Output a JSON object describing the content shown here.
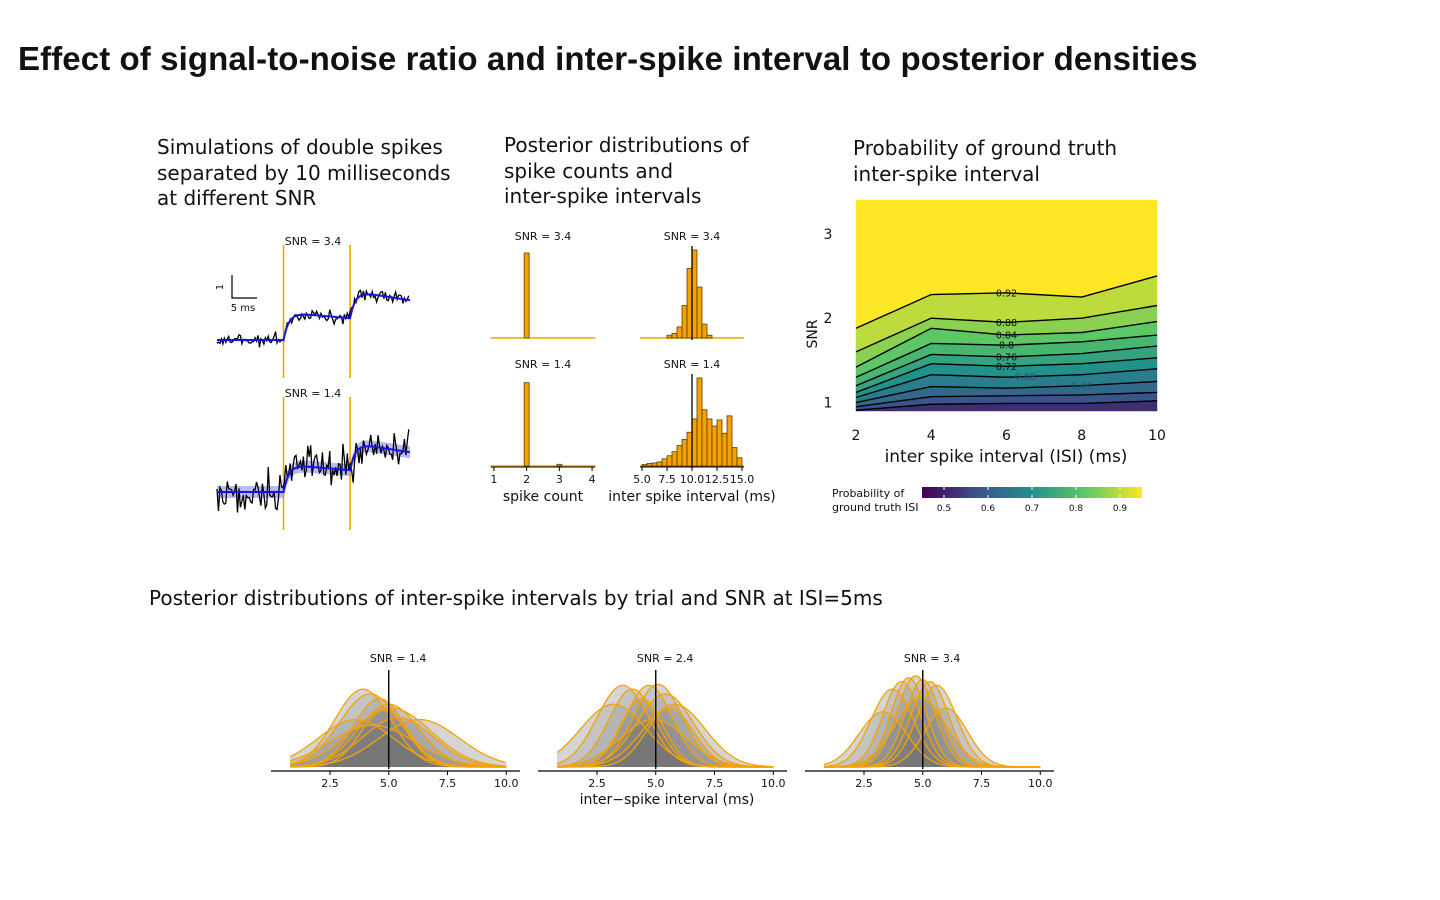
{
  "page": {
    "title": "Effect of signal-to-noise ratio and inter-spike interval to posterior densities"
  },
  "panels": {
    "traces": {
      "title": "Simulations of double spikes\nseparated by 10 milliseconds\nat different SNR"
    },
    "posteriors": {
      "title": "Posterior distributions of\nspike counts and\ninter-spike intervals"
    },
    "heatmap": {
      "title": "Probability of ground truth\ninter-spike interval"
    },
    "trials": {
      "title": "Posterior distributions of inter-spike intervals by trial and SNR at ISI=5ms"
    }
  },
  "chart_data": [
    {
      "id": "traces",
      "type": "line",
      "facets": [
        "SNR = 3.4",
        "SNR = 1.4"
      ],
      "scale_bar": {
        "y_label": "1",
        "x_label": "5 ms"
      },
      "spike_times_ms": [
        0,
        10
      ],
      "isi_ms": 10
    },
    {
      "id": "spike-count",
      "type": "bar",
      "xlabel": "spike count",
      "x_ticks": [
        "1",
        "2",
        "3",
        "4"
      ],
      "facets": [
        {
          "label": "SNR = 3.4",
          "categories": [
            1,
            2,
            3,
            4
          ],
          "values": [
            0,
            1.0,
            0,
            0
          ]
        },
        {
          "label": "SNR = 1.4",
          "categories": [
            1,
            2,
            3,
            4
          ],
          "values": [
            0,
            0.98,
            0.02,
            0
          ]
        }
      ]
    },
    {
      "id": "isi-histogram",
      "type": "bar",
      "xlabel": "inter spike interval (ms)",
      "x_ticks": [
        "5.0",
        "7.5",
        "10.0",
        "12.5",
        "15.0"
      ],
      "xlim": [
        5,
        15
      ],
      "ground_truth": 10,
      "facets": [
        {
          "label": "SNR = 3.4",
          "bin_centers": [
            7.75,
            8.25,
            8.75,
            9.25,
            9.75,
            10.25,
            10.75,
            11.25,
            11.75
          ],
          "values": [
            0.3,
            0.5,
            1.2,
            3.5,
            7.5,
            9.5,
            5.5,
            1.5,
            0.3
          ]
        },
        {
          "label": "SNR = 1.4",
          "bin_centers": [
            5.25,
            5.75,
            6.25,
            6.75,
            7.25,
            7.75,
            8.25,
            8.75,
            9.25,
            9.75,
            10.25,
            10.75,
            11.25,
            11.75,
            12.25,
            12.75,
            13.25,
            13.75,
            14.25,
            14.75
          ],
          "values": [
            0.15,
            0.25,
            0.3,
            0.4,
            0.7,
            1.0,
            1.4,
            2.0,
            2.6,
            3.3,
            4.6,
            8.6,
            5.5,
            4.6,
            3.9,
            4.5,
            3.2,
            4.9,
            1.8,
            0.8
          ]
        }
      ]
    },
    {
      "id": "heatmap",
      "type": "heatmap",
      "xlabel": "inter spike interval (ISI) (ms)",
      "ylabel": "SNR",
      "x_ticks": [
        "2",
        "4",
        "6",
        "8",
        "10"
      ],
      "y_ticks": [
        "1",
        "2",
        "3"
      ],
      "xlim": [
        2,
        10
      ],
      "ylim": [
        0.9,
        3.4
      ],
      "x": [
        2,
        4,
        6,
        8,
        10
      ],
      "contour_lines": [
        {
          "level": 0.92,
          "y": [
            1.88,
            2.28,
            2.3,
            2.25,
            2.5
          ]
        },
        {
          "level": 0.88,
          "y": [
            1.6,
            2.0,
            1.95,
            2.0,
            2.15
          ]
        },
        {
          "level": 0.84,
          "y": [
            1.42,
            1.88,
            1.8,
            1.83,
            1.96
          ]
        },
        {
          "level": 0.8,
          "y": [
            1.3,
            1.7,
            1.68,
            1.72,
            1.8
          ]
        },
        {
          "level": 0.76,
          "y": [
            1.2,
            1.57,
            1.54,
            1.58,
            1.67
          ]
        },
        {
          "level": 0.72,
          "y": [
            1.12,
            1.46,
            1.43,
            1.46,
            1.53
          ]
        },
        {
          "level": 0.68,
          "y": [
            1.06,
            1.33,
            1.3,
            1.33,
            1.4
          ]
        },
        {
          "level": 0.64,
          "y": [
            1.0,
            1.19,
            1.17,
            1.2,
            1.25
          ]
        },
        {
          "level": 0.6,
          "y": [
            0.95,
            1.07,
            1.08,
            1.09,
            1.12
          ]
        },
        {
          "level": 0.56,
          "y": [
            0.91,
            0.98,
            0.99,
            0.99,
            1.02
          ]
        }
      ],
      "contour_labels": [
        "0.92",
        "0.88",
        "0.84",
        "0.8",
        "0.76",
        "0.72",
        "0.68",
        "0.64"
      ],
      "colorbar": {
        "title": "Probability of\nground truth ISI",
        "ticks": [
          "0.5",
          "0.6",
          "0.7",
          "0.8",
          "0.9"
        ],
        "range": [
          0.45,
          0.95
        ],
        "colormap": [
          "#440154",
          "#3b528b",
          "#21918c",
          "#5ec962",
          "#fde725"
        ]
      }
    },
    {
      "id": "trial-densities",
      "type": "area",
      "xlabel": "inter−spike interval (ms)",
      "x_ticks": [
        "2.5",
        "5.0",
        "7.5",
        "10.0"
      ],
      "xlim": [
        0.5,
        10.5
      ],
      "ground_truth": 5,
      "line_color": "#f5a200",
      "facets": [
        {
          "label": "SNR = 1.4",
          "trials": [
            {
              "mean": 3.9,
              "sd": 1.2,
              "peak": 0.82
            },
            {
              "mean": 4.2,
              "sd": 1.3,
              "peak": 0.77
            },
            {
              "mean": 4.6,
              "sd": 1.1,
              "peak": 0.72
            },
            {
              "mean": 5.0,
              "sd": 1.3,
              "peak": 0.66
            },
            {
              "mean": 3.6,
              "sd": 1.6,
              "peak": 0.5
            },
            {
              "mean": 5.4,
              "sd": 1.5,
              "peak": 0.52
            },
            {
              "mean": 6.3,
              "sd": 1.7,
              "peak": 0.5
            },
            {
              "mean": 4.3,
              "sd": 1.8,
              "peak": 0.44
            },
            {
              "mean": 5.1,
              "sd": 1.7,
              "peak": 0.62
            },
            {
              "mean": 4.8,
              "sd": 1.0,
              "peak": 0.6
            }
          ]
        },
        {
          "label": "SNR = 2.4",
          "trials": [
            {
              "mean": 3.6,
              "sd": 1.1,
              "peak": 0.86
            },
            {
              "mean": 4.0,
              "sd": 1.0,
              "peak": 0.82
            },
            {
              "mean": 4.7,
              "sd": 1.0,
              "peak": 0.86
            },
            {
              "mean": 5.1,
              "sd": 1.05,
              "peak": 0.87
            },
            {
              "mean": 5.4,
              "sd": 1.2,
              "peak": 0.77
            },
            {
              "mean": 5.8,
              "sd": 1.3,
              "peak": 0.66
            },
            {
              "mean": 4.4,
              "sd": 0.9,
              "peak": 0.72
            },
            {
              "mean": 3.2,
              "sd": 1.4,
              "peak": 0.66
            },
            {
              "mean": 5.6,
              "sd": 1.0,
              "peak": 0.62
            },
            {
              "mean": 4.9,
              "sd": 1.4,
              "peak": 0.5
            }
          ]
        },
        {
          "label": "SNR = 3.4",
          "trials": [
            {
              "mean": 3.7,
              "sd": 0.9,
              "peak": 0.82
            },
            {
              "mean": 4.1,
              "sd": 0.8,
              "peak": 0.9
            },
            {
              "mean": 4.4,
              "sd": 0.75,
              "peak": 0.94
            },
            {
              "mean": 4.7,
              "sd": 0.8,
              "peak": 0.96
            },
            {
              "mean": 5.0,
              "sd": 0.75,
              "peak": 0.92
            },
            {
              "mean": 5.3,
              "sd": 0.8,
              "peak": 0.9
            },
            {
              "mean": 5.6,
              "sd": 0.85,
              "peak": 0.86
            },
            {
              "mean": 4.9,
              "sd": 1.1,
              "peak": 0.72
            },
            {
              "mean": 3.3,
              "sd": 1.0,
              "peak": 0.58
            },
            {
              "mean": 6.0,
              "sd": 0.9,
              "peak": 0.62
            }
          ]
        }
      ]
    }
  ]
}
